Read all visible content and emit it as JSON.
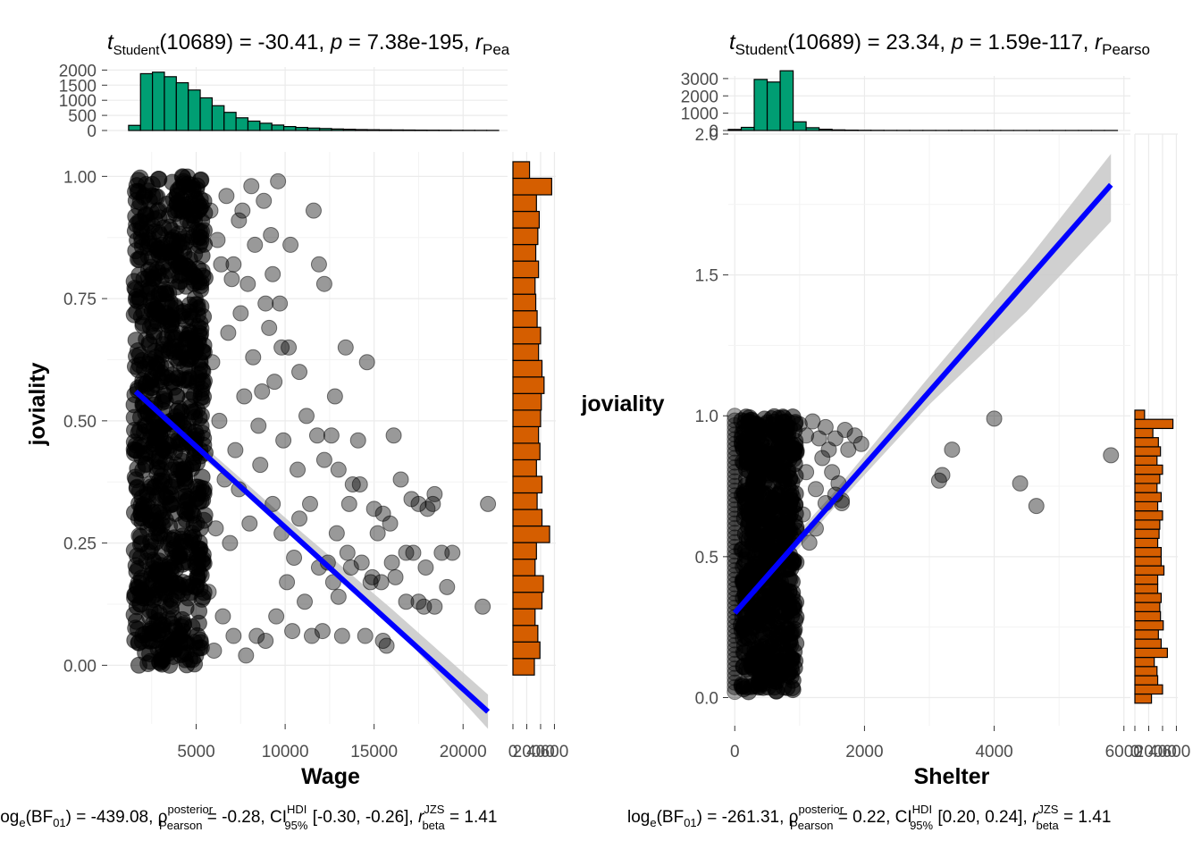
{
  "colors": {
    "point": "#000000",
    "line": "#0000ff",
    "band": "#c8c8c8",
    "xhist": "#009e73",
    "yhist": "#d55e00",
    "grid": "#ebebeb"
  },
  "chart_data": [
    {
      "type": "scatter",
      "title": {
        "t_sym": "t",
        "t_sub": "Student",
        "df": "(10689)",
        "t_val": " = -30.41, ",
        "p_sym": "p",
        "p_val": " = 7.38e-195, ",
        "r_sym": "r",
        "r_sub": "Pea"
      },
      "subtitle": {
        "log": "log",
        "log_sub": "e",
        "bf": "(BF",
        "bf_sub": "01",
        "bf_val": ") = -439.08, ",
        "rho": "ρ",
        "rho_sup": "posterior",
        "rho_sub": "Pearson",
        "rho_val": " = -0.28, CI",
        "ci_sup": "HDI",
        "ci_sub": "95%",
        "ci_val": " [-0.30, -0.26], ",
        "rb": "r",
        "rb_sup": "JZS",
        "rb_sub": "beta",
        "rb_val": " = 1.41"
      },
      "xlabel": "Wage",
      "ylabel": "joviality",
      "xlim": [
        0,
        22500
      ],
      "ylim": [
        -0.12,
        1.05
      ],
      "x_ticks": [
        5000,
        10000,
        15000,
        20000
      ],
      "x_tick_labels": [
        "5000",
        "10000",
        "15000",
        "20000"
      ],
      "y_ticks": [
        0,
        0.25,
        0.5,
        0.75,
        1.0
      ],
      "y_tick_labels": [
        "0.00",
        "0.25",
        "0.50",
        "0.75",
        "1.00"
      ],
      "regression": {
        "x0": 1600,
        "y0": 0.56,
        "x1": 21400,
        "y1": -0.095
      },
      "band": {
        "upper": [
          [
            1600,
            0.585
          ],
          [
            6000,
            0.43
          ],
          [
            11000,
            0.27
          ],
          [
            16000,
            0.115
          ],
          [
            21400,
            -0.06
          ]
        ],
        "lower": [
          [
            1600,
            0.535
          ],
          [
            6000,
            0.405
          ],
          [
            11000,
            0.25
          ],
          [
            16000,
            0.085
          ],
          [
            21400,
            -0.13
          ]
        ]
      },
      "dense_region": {
        "x_min": 1500,
        "x_max": 5500,
        "y_min": 0,
        "y_max": 1.0
      },
      "points": [
        [
          5800,
          0.93
        ],
        [
          6200,
          0.87
        ],
        [
          6700,
          0.96
        ],
        [
          7100,
          0.82
        ],
        [
          7400,
          0.91
        ],
        [
          7900,
          0.78
        ],
        [
          8300,
          0.86
        ],
        [
          8800,
          0.95
        ],
        [
          9200,
          0.88
        ],
        [
          9600,
          0.99
        ],
        [
          10300,
          0.86
        ],
        [
          11600,
          0.93
        ],
        [
          11900,
          0.82
        ],
        [
          12200,
          0.78
        ],
        [
          6800,
          0.68
        ],
        [
          7500,
          0.72
        ],
        [
          8200,
          0.63
        ],
        [
          8700,
          0.56
        ],
        [
          9100,
          0.69
        ],
        [
          9800,
          0.65
        ],
        [
          10200,
          0.65
        ],
        [
          10800,
          0.6
        ],
        [
          11200,
          0.51
        ],
        [
          11800,
          0.47
        ],
        [
          12200,
          0.42
        ],
        [
          12800,
          0.55
        ],
        [
          13000,
          0.4
        ],
        [
          13400,
          0.65
        ],
        [
          14600,
          0.62
        ],
        [
          14100,
          0.46
        ],
        [
          13800,
          0.37
        ],
        [
          12600,
          0.47
        ],
        [
          15000,
          0.32
        ],
        [
          16100,
          0.47
        ],
        [
          16500,
          0.38
        ],
        [
          17100,
          0.34
        ],
        [
          17500,
          0.33
        ],
        [
          18300,
          0.33
        ],
        [
          18400,
          0.35
        ],
        [
          15900,
          0.29
        ],
        [
          18000,
          0.32
        ],
        [
          19400,
          0.23
        ],
        [
          21400,
          0.33
        ],
        [
          15500,
          0.31
        ],
        [
          14200,
          0.37
        ],
        [
          13500,
          0.23
        ],
        [
          13700,
          0.2
        ],
        [
          14900,
          0.18
        ],
        [
          14300,
          0.21
        ],
        [
          16000,
          0.21
        ],
        [
          16200,
          0.18
        ],
        [
          16800,
          0.13
        ],
        [
          17500,
          0.13
        ],
        [
          17800,
          0.12
        ],
        [
          18400,
          0.12
        ],
        [
          19100,
          0.16
        ],
        [
          17200,
          0.23
        ],
        [
          18800,
          0.23
        ],
        [
          17900,
          0.2
        ],
        [
          21100,
          0.12
        ],
        [
          16800,
          0.23
        ],
        [
          12400,
          0.21
        ],
        [
          12700,
          0.17
        ],
        [
          11900,
          0.2
        ],
        [
          13000,
          0.14
        ],
        [
          10800,
          0.3
        ],
        [
          10500,
          0.22
        ],
        [
          11100,
          0.13
        ],
        [
          10100,
          0.17
        ],
        [
          9500,
          0.1
        ],
        [
          8900,
          0.05
        ],
        [
          8400,
          0.06
        ],
        [
          7800,
          0.02
        ],
        [
          7100,
          0.06
        ],
        [
          6500,
          0.1
        ],
        [
          6900,
          0.25
        ],
        [
          7400,
          0.36
        ],
        [
          8000,
          0.29
        ],
        [
          8600,
          0.41
        ],
        [
          9300,
          0.33
        ],
        [
          9800,
          0.27
        ],
        [
          10400,
          0.07
        ],
        [
          11500,
          0.06
        ],
        [
          12100,
          0.07
        ],
        [
          13200,
          0.06
        ],
        [
          14500,
          0.06
        ],
        [
          15500,
          0.05
        ],
        [
          15700,
          0.04
        ],
        [
          11400,
          0.33
        ],
        [
          12900,
          0.27
        ],
        [
          13600,
          0.33
        ],
        [
          15200,
          0.27
        ],
        [
          15400,
          0.17
        ],
        [
          14800,
          0.17
        ],
        [
          10700,
          0.4
        ],
        [
          9900,
          0.46
        ],
        [
          9400,
          0.58
        ],
        [
          8500,
          0.49
        ],
        [
          7700,
          0.55
        ],
        [
          7200,
          0.44
        ],
        [
          6300,
          0.5
        ],
        [
          6600,
          0.38
        ],
        [
          5900,
          0.62
        ],
        [
          6100,
          0.28
        ],
        [
          5700,
          0.15
        ],
        [
          6000,
          0.03
        ],
        [
          6400,
          0.82
        ],
        [
          7000,
          0.79
        ],
        [
          7600,
          0.93
        ],
        [
          8100,
          0.98
        ],
        [
          8900,
          0.74
        ],
        [
          9300,
          0.8
        ],
        [
          9700,
          0.74
        ]
      ],
      "x_hist": {
        "edges": [
          1200,
          22000
        ],
        "counts": [
          170,
          1880,
          1930,
          1780,
          1580,
          1340,
          1080,
          820,
          600,
          420,
          310,
          240,
          180,
          130,
          100,
          80,
          65,
          50,
          40,
          30,
          25,
          20,
          18,
          15,
          12,
          10,
          8,
          6,
          5,
          4,
          3
        ],
        "y_ticks": [
          0,
          500,
          1000,
          1500,
          2000
        ],
        "y_tick_labels": [
          "0",
          "500",
          "1000",
          "1500",
          "2000"
        ]
      },
      "y_hist": {
        "counts": [
          310,
          390,
          360,
          320,
          420,
          440,
          320,
          340,
          530,
          420,
          350,
          420,
          340,
          390,
          370,
          400,
          410,
          450,
          420,
          370,
          400,
          350,
          330,
          320,
          370,
          330,
          360,
          380,
          340,
          560,
          240
        ],
        "x_tick_labels": [
          "0",
          "200",
          "400",
          "600"
        ]
      }
    },
    {
      "type": "scatter",
      "title": {
        "t_sym": "t",
        "t_sub": "Student",
        "df": "(10689)",
        "t_val": " = 23.34, ",
        "p_sym": "p",
        "p_val": " = 1.59e-117, ",
        "r_sym": "r",
        "r_sub": "Pearso"
      },
      "subtitle": {
        "log": "log",
        "log_sub": "e",
        "bf": "(BF",
        "bf_sub": "01",
        "bf_val": ") = -261.31, ",
        "rho": "ρ",
        "rho_sup": "posterior",
        "rho_sub": "Pearson",
        "rho_val": " = 0.22, CI",
        "ci_sup": "HDI",
        "ci_sub": "95%",
        "ci_val": " [0.20, 0.24], ",
        "rb": "r",
        "rb_sup": "JZS",
        "rb_sub": "beta",
        "rb_val": " = 1.41"
      },
      "xlabel": "Shelter",
      "ylabel": "joviality",
      "xlim": [
        -100,
        6100
      ],
      "ylim": [
        -0.1,
        2.0
      ],
      "x_ticks": [
        0,
        2000,
        4000,
        6000
      ],
      "x_tick_labels": [
        "0",
        "2000",
        "4000",
        "6000"
      ],
      "y_ticks": [
        0,
        0.5,
        1.0,
        1.5,
        2.0
      ],
      "y_tick_labels": [
        "0.0",
        "0.5",
        "1.0",
        "1.5",
        "2.0"
      ],
      "regression": {
        "x0": 0,
        "y0": 0.3,
        "x1": 5800,
        "y1": 1.82
      },
      "band": {
        "upper": [
          [
            0,
            0.34
          ],
          [
            1500,
            0.72
          ],
          [
            3000,
            1.14
          ],
          [
            4500,
            1.55
          ],
          [
            5800,
            1.93
          ]
        ],
        "lower": [
          [
            0,
            0.27
          ],
          [
            1500,
            0.665
          ],
          [
            3000,
            1.04
          ],
          [
            4500,
            1.37
          ],
          [
            5800,
            1.69
          ]
        ]
      },
      "dense_region": {
        "x_min": 100,
        "x_max": 950,
        "y_min": 0.02,
        "y_max": 1.0
      },
      "dense_column": {
        "x": 0,
        "y_min": 0.02,
        "y_max": 1.0
      },
      "points": [
        [
          1000,
          0.97
        ],
        [
          1100,
          0.93
        ],
        [
          1200,
          0.98
        ],
        [
          1300,
          0.92
        ],
        [
          1350,
          0.85
        ],
        [
          1400,
          0.96
        ],
        [
          1450,
          0.88
        ],
        [
          1500,
          0.8
        ],
        [
          1550,
          0.92
        ],
        [
          1600,
          0.76
        ],
        [
          1650,
          0.7
        ],
        [
          1700,
          0.95
        ],
        [
          1750,
          0.88
        ],
        [
          1850,
          0.93
        ],
        [
          1950,
          0.9
        ],
        [
          1100,
          0.8
        ],
        [
          1250,
          0.74
        ],
        [
          1400,
          0.69
        ],
        [
          1550,
          0.72
        ],
        [
          1650,
          0.69
        ],
        [
          1250,
          0.6
        ],
        [
          3150,
          0.77
        ],
        [
          3200,
          0.79
        ],
        [
          3350,
          0.88
        ],
        [
          4000,
          0.99
        ],
        [
          4400,
          0.76
        ],
        [
          4650,
          0.68
        ],
        [
          5800,
          0.86
        ],
        [
          1050,
          0.65
        ],
        [
          1150,
          0.55
        ]
      ],
      "x_hist": {
        "edges": [
          -100,
          5900
        ],
        "counts": [
          60,
          180,
          2950,
          2800,
          3450,
          500,
          160,
          70,
          35,
          20,
          12,
          8,
          5,
          4,
          3,
          3,
          2,
          2,
          2,
          2,
          1,
          1,
          1,
          1,
          1,
          1,
          1,
          1,
          1,
          1
        ],
        "y_ticks": [
          0,
          1000,
          2000,
          3000
        ],
        "y_tick_labels": [
          "0",
          "1000",
          "2000",
          "3000"
        ]
      },
      "y_hist": {
        "counts": [
          240,
          400,
          330,
          320,
          280,
          470,
          380,
          340,
          410,
          370,
          360,
          380,
          330,
          330,
          420,
          380,
          380,
          330,
          350,
          360,
          400,
          330,
          380,
          320,
          360,
          400,
          320,
          370,
          340,
          260,
          550,
          140
        ],
        "x_tick_labels": [
          "0",
          "200",
          "400",
          "600"
        ]
      }
    }
  ]
}
